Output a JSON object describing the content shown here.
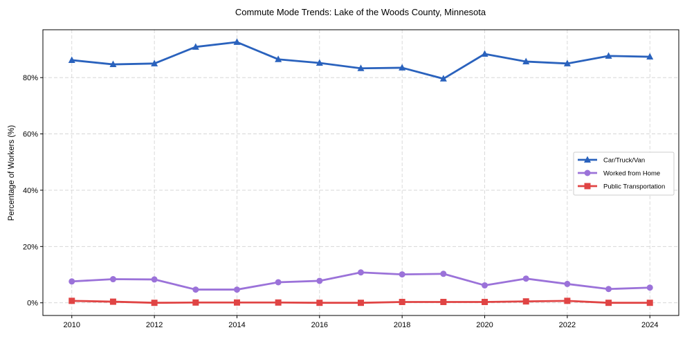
{
  "chart_data": {
    "type": "line",
    "title": "Commute Mode Trends: Lake of the Woods County, Minnesota",
    "xlabel": "",
    "ylabel": "Percentage of Workers (%)",
    "x": [
      2010,
      2011,
      2012,
      2013,
      2014,
      2015,
      2016,
      2017,
      2018,
      2019,
      2020,
      2021,
      2022,
      2023,
      2024
    ],
    "xticks": [
      "2010",
      "2012",
      "2014",
      "2016",
      "2018",
      "2020",
      "2022",
      "2024"
    ],
    "yticks": [
      "0%",
      "20%",
      "40%",
      "60%",
      "80%"
    ],
    "ylim": [
      -4.5,
      97
    ],
    "xlim": [
      2009.3,
      2024.7
    ],
    "grid": true,
    "legend_position": "center-right",
    "series": [
      {
        "name": "Car/Truck/Van",
        "color": "#2a62bd",
        "marker": "triangle",
        "values": [
          86.2,
          84.7,
          85.0,
          90.9,
          92.6,
          86.5,
          85.2,
          83.3,
          83.5,
          79.6,
          88.4,
          85.7,
          85.0,
          87.7,
          87.4
        ]
      },
      {
        "name": "Worked from Home",
        "color": "#9b72d9",
        "marker": "circle",
        "values": [
          7.6,
          8.4,
          8.3,
          4.7,
          4.7,
          7.3,
          7.8,
          10.8,
          10.1,
          10.3,
          6.2,
          8.6,
          6.7,
          4.9,
          5.4
        ]
      },
      {
        "name": "Public Transportation",
        "color": "#e04444",
        "marker": "square",
        "values": [
          0.7,
          0.4,
          0.0,
          0.1,
          0.1,
          0.1,
          0.0,
          0.0,
          0.3,
          0.3,
          0.3,
          0.5,
          0.7,
          0.0,
          0.0
        ]
      }
    ]
  }
}
